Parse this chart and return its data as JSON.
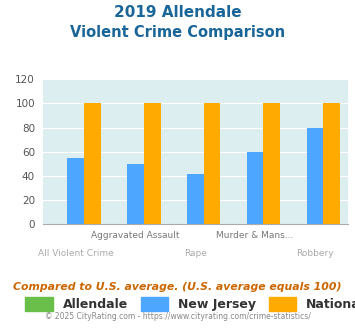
{
  "title_line1": "2019 Allendale",
  "title_line2": "Violent Crime Comparison",
  "categories": [
    "All Violent Crime",
    "Aggravated Assault",
    "Rape",
    "Murder & Mans...",
    "Robbery"
  ],
  "allendale_values": [
    0,
    0,
    0,
    0,
    0
  ],
  "nj_values": [
    55,
    50,
    42,
    60,
    80
  ],
  "national_values": [
    100,
    100,
    100,
    100,
    100
  ],
  "allendale_color": "#6abf4b",
  "nj_color": "#4da6ff",
  "national_color": "#ffaa00",
  "ylim": [
    0,
    120
  ],
  "yticks": [
    0,
    20,
    40,
    60,
    80,
    100,
    120
  ],
  "background_color": "#ddeef0",
  "title_color": "#1a6699",
  "footer_text": "Compared to U.S. average. (U.S. average equals 100)",
  "footer_color": "#cc6600",
  "copyright_text": "© 2025 CityRating.com - https://www.cityrating.com/crime-statistics/",
  "copyright_color": "#888888",
  "legend_labels": [
    "Allendale",
    "New Jersey",
    "National"
  ],
  "bar_width": 0.28,
  "tick_labels_top": [
    "",
    "Aggravated Assault",
    "",
    "Murder & Mans...",
    ""
  ],
  "tick_labels_bot": [
    "All Violent Crime",
    "",
    "Rape",
    "",
    "Robbery"
  ],
  "tick_top_color": "#777777",
  "tick_bot_color": "#aaaaaa"
}
